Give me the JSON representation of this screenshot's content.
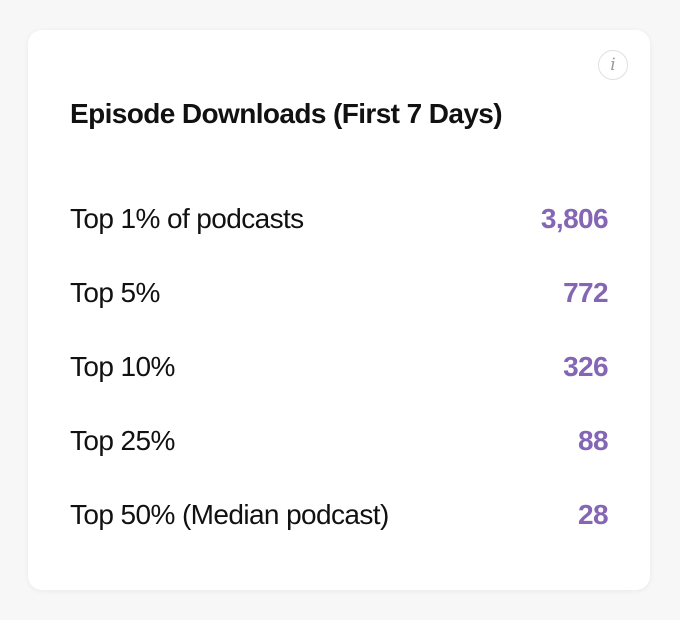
{
  "card": {
    "title": "Episode Downloads (First 7 Days)",
    "info_icon": "i",
    "accent_color": "#8466b4",
    "rows": [
      {
        "label": "Top 1% of podcasts",
        "value": "3,806"
      },
      {
        "label": "Top 5%",
        "value": "772"
      },
      {
        "label": "Top 10%",
        "value": "326"
      },
      {
        "label": "Top 25%",
        "value": "88"
      },
      {
        "label": "Top 50% (Median podcast)",
        "value": "28"
      }
    ]
  }
}
